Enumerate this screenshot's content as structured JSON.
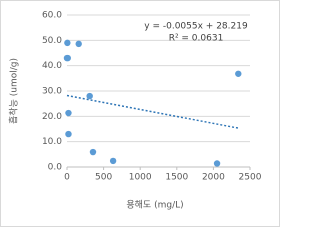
{
  "chart_data": {
    "type": "scatter",
    "x_label": "용해도 (mg/L)",
    "y_label": "흡착능 (umol/g)",
    "series": [
      {
        "color": "#5b9bd5",
        "x": [
          5,
          10,
          160,
          0,
          20,
          20,
          310,
          355,
          630,
          2050,
          2340
        ],
        "values": [
          49,
          43,
          48.6,
          43,
          21.3,
          13,
          28,
          5.9,
          2.4,
          1.4,
          36.8
        ]
      }
    ],
    "trendline": {
      "slope": -0.0055,
      "intercept": 28.219,
      "color": "#2e75b6",
      "equation_label": "y = -0.0055x + 28.219",
      "r2_label": "R² = 0.0631"
    },
    "xlim": [
      0,
      2500
    ],
    "xticks": [
      0,
      500,
      1000,
      1500,
      2000,
      2500
    ],
    "ylim": [
      0,
      60
    ],
    "yticks": [
      {
        "value": 0,
        "label": "0.0"
      },
      {
        "value": 10,
        "label": "10.0"
      },
      {
        "value": 20,
        "label": "20.0"
      },
      {
        "value": 30,
        "label": "30.0"
      },
      {
        "value": 40,
        "label": "40.0"
      },
      {
        "value": 50,
        "label": "50.0"
      },
      {
        "value": 60,
        "label": "60.0"
      }
    ],
    "grid": true
  }
}
